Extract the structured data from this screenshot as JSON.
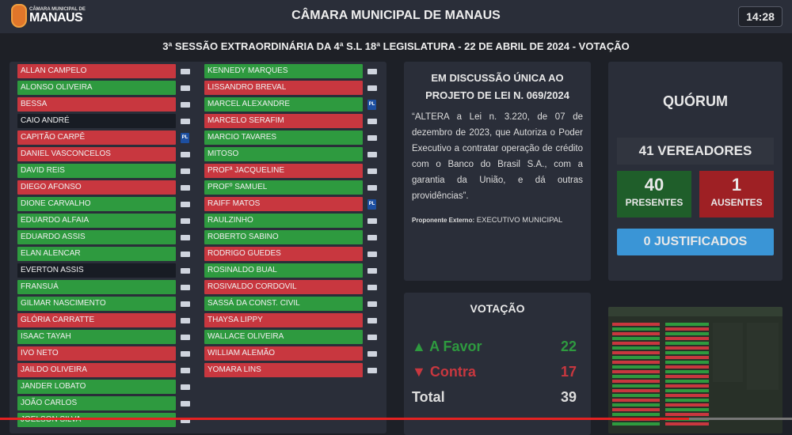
{
  "header": {
    "logo_small": "CÂMARA MUNICIPAL DE",
    "logo_big": "MANAUS",
    "title": "CÂMARA MUNICIPAL DE MANAUS",
    "clock": "14:28"
  },
  "session_title": "3ª SESSÃO EXTRAORDINÁRIA DA 4ª S.L 18ª LEGISLATURA - 22 DE ABRIL DE 2024 - VOTAÇÃO",
  "colors": {
    "favor": "#2e9a3f",
    "contra": "#c8373f",
    "absent": "#181c24",
    "justified": "#3a95d6"
  },
  "councilors_left": [
    {
      "name": "ALLAN CAMPELO",
      "vote": "red"
    },
    {
      "name": "ALONSO OLIVEIRA",
      "vote": "green"
    },
    {
      "name": "BESSA",
      "vote": "red"
    },
    {
      "name": "CAIO ANDRÉ",
      "vote": "none"
    },
    {
      "name": "CAPITÃO CARPÊ",
      "vote": "red",
      "party": "PL"
    },
    {
      "name": "DANIEL VASCONCELOS",
      "vote": "red"
    },
    {
      "name": "DAVID REIS",
      "vote": "green"
    },
    {
      "name": "DIEGO AFONSO",
      "vote": "red"
    },
    {
      "name": "DIONE CARVALHO",
      "vote": "green"
    },
    {
      "name": "EDUARDO ALFAIA",
      "vote": "green"
    },
    {
      "name": "EDUARDO ASSIS",
      "vote": "green"
    },
    {
      "name": "ELAN ALENCAR",
      "vote": "green"
    },
    {
      "name": "EVERTON ASSIS",
      "vote": "none"
    },
    {
      "name": "FRANSUÁ",
      "vote": "green"
    },
    {
      "name": "GILMAR NASCIMENTO",
      "vote": "green"
    },
    {
      "name": "GLÓRIA CARRATTE",
      "vote": "red"
    },
    {
      "name": "ISAAC TAYAH",
      "vote": "green"
    },
    {
      "name": "IVO NETO",
      "vote": "red"
    },
    {
      "name": "JAILDO OLIVEIRA",
      "vote": "red"
    },
    {
      "name": "JANDER LOBATO",
      "vote": "green"
    },
    {
      "name": "JOÃO CARLOS",
      "vote": "green"
    },
    {
      "name": "JOELSON SILVA",
      "vote": "green"
    }
  ],
  "councilors_right": [
    {
      "name": "KENNEDY MARQUES",
      "vote": "green"
    },
    {
      "name": "LISSANDRO BREVAL",
      "vote": "red"
    },
    {
      "name": "MARCEL ALEXANDRE",
      "vote": "green",
      "party": "PL"
    },
    {
      "name": "MARCELO SERAFIM",
      "vote": "red"
    },
    {
      "name": "MARCIO TAVARES",
      "vote": "green"
    },
    {
      "name": "MITOSO",
      "vote": "green"
    },
    {
      "name": "PROFª JACQUELINE",
      "vote": "red"
    },
    {
      "name": "PROFº SAMUEL",
      "vote": "green"
    },
    {
      "name": "RAIFF MATOS",
      "vote": "red",
      "party": "PL"
    },
    {
      "name": "RAULZINHO",
      "vote": "green"
    },
    {
      "name": "ROBERTO SABINO",
      "vote": "green"
    },
    {
      "name": "RODRIGO GUEDES",
      "vote": "red"
    },
    {
      "name": "ROSINALDO BUAL",
      "vote": "green"
    },
    {
      "name": "ROSIVALDO CORDOVIL",
      "vote": "red"
    },
    {
      "name": "SASSÁ DA CONST. CIVIL",
      "vote": "green"
    },
    {
      "name": "THAYSA LIPPY",
      "vote": "red"
    },
    {
      "name": "WALLACE OLIVEIRA",
      "vote": "green"
    },
    {
      "name": "WILLIAM ALEMÃO",
      "vote": "red"
    },
    {
      "name": "YOMARA LINS",
      "vote": "red"
    }
  ],
  "project": {
    "heading_1": "EM DISCUSSÃO ÚNICA AO",
    "heading_2": "PROJETO DE LEI N. 069/2024",
    "text": "“ALTERA a Lei n. 3.220, de 07 de dezembro de 2023, que Autoriza o Poder Executivo a contratar operação de crédito com o Banco do Brasil S.A., com a garantia da União, e dá outras providências”.",
    "proponent_label": "Proponente Externo:",
    "proponent": "EXECUTIVO MUNICIPAL"
  },
  "quorum": {
    "title": "QUÓRUM",
    "total": "41 VEREADORES",
    "present_n": "40",
    "present_l": "PRESENTES",
    "absent_n": "1",
    "absent_l": "AUSENTES",
    "justified": "0 JUSTIFICADOS"
  },
  "voting": {
    "title": "VOTAÇÃO",
    "favor_label": "A Favor",
    "favor": "22",
    "contra_label": "Contra",
    "contra": "17",
    "total_label": "Total",
    "total": "39"
  },
  "video_progress": 0.87
}
